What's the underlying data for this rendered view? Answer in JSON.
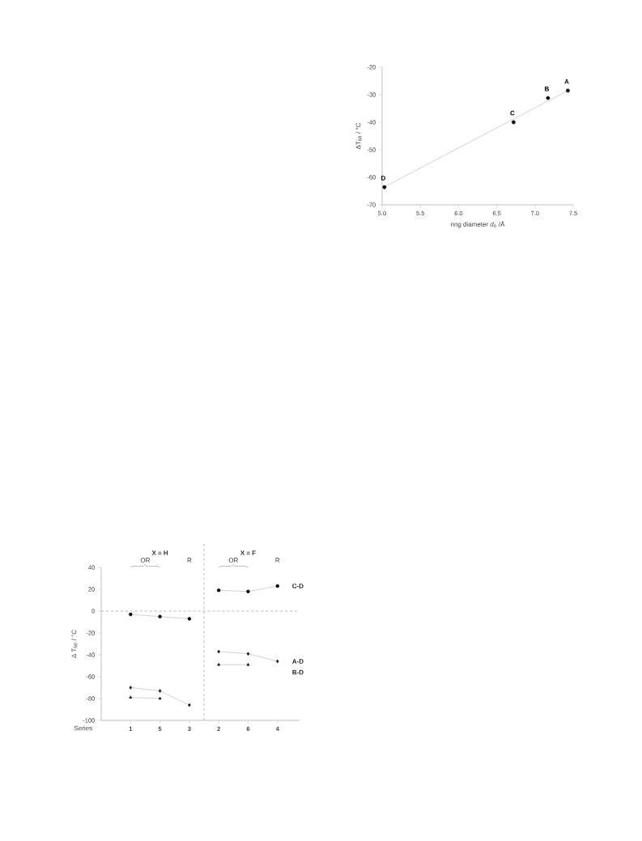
{
  "chart_data": [
    {
      "type": "scatter",
      "xlabel": "ring diameter *d*$_{e}$ /Å",
      "ylabel": "ΔT$_{MI}$ / °C",
      "series": [
        {
          "type": "scatter",
          "color": "#000000",
          "marker": "circle",
          "x": [
            5.03,
            6.72,
            7.17,
            7.43
          ],
          "values": [
            -63.6,
            -40.0,
            -31.2,
            -28.5
          ]
        },
        {
          "type": "line",
          "color": "#8c8c8c",
          "marker": "none",
          "x": [
            5.03,
            7.45
          ],
          "values": [
            -63.5,
            -28.2
          ]
        }
      ],
      "xlim": [
        5.0,
        7.5
      ],
      "xticks": [
        {
          "value": 5.0,
          "label": "5.0"
        },
        5.5,
        {
          "value": 6.0,
          "label": "6.0"
        },
        6.5,
        {
          "value": 7.0,
          "label": "7.0"
        },
        7.5
      ],
      "ylim": [
        -70,
        -20
      ],
      "yticks": [
        -70,
        -60,
        -50,
        -40,
        -30,
        -20
      ],
      "annotations": [
        {
          "text": "D",
          "x": 5.03,
          "y": -63.6
        },
        {
          "text": "C",
          "x": 6.72,
          "y": -40.0
        },
        {
          "text": "B",
          "x": 7.17,
          "y": -31.2
        },
        {
          "text": "A",
          "x": 7.43,
          "y": -28.5
        }
      ]
    },
    {
      "type": "line",
      "xlabel": "Series",
      "ylabel": "Δ T$_{MI}$ / °C",
      "categories": [
        "1",
        "5",
        "3",
        "2",
        "6",
        "4"
      ],
      "series": [
        {
          "color": "#000000",
          "marker": "circle",
          "values": [
            -3,
            -5,
            -7,
            null,
            null,
            null
          ]
        },
        {
          "name": "C-D",
          "color": "#000000",
          "marker": "circle",
          "values": [
            null,
            null,
            null,
            19,
            18,
            23
          ]
        },
        {
          "color": "#000000",
          "marker": "diamond",
          "values": [
            -70,
            -73,
            -86,
            null,
            null,
            null
          ]
        },
        {
          "name": "A-D",
          "color": "#000000",
          "marker": "diamond",
          "values": [
            null,
            null,
            null,
            -37,
            -39,
            -46
          ]
        },
        {
          "color": "#000000",
          "marker": "triangle",
          "values": [
            -79,
            -80,
            null,
            null,
            null,
            null
          ]
        },
        {
          "name": "B-D",
          "color": "#000000",
          "marker": "triangle",
          "values": [
            null,
            null,
            null,
            -49,
            -49,
            null
          ]
        }
      ],
      "ylim": [
        -100,
        40
      ],
      "yticks": [
        -100,
        -80,
        -60,
        -40,
        -20,
        0,
        20,
        40
      ],
      "ref_lines": [
        {
          "axis": "y",
          "value": 0,
          "line_style": "dashed"
        }
      ],
      "annotations": [
        "X = H",
        "OR",
        "R",
        "X = F",
        "OR",
        "R"
      ]
    }
  ]
}
